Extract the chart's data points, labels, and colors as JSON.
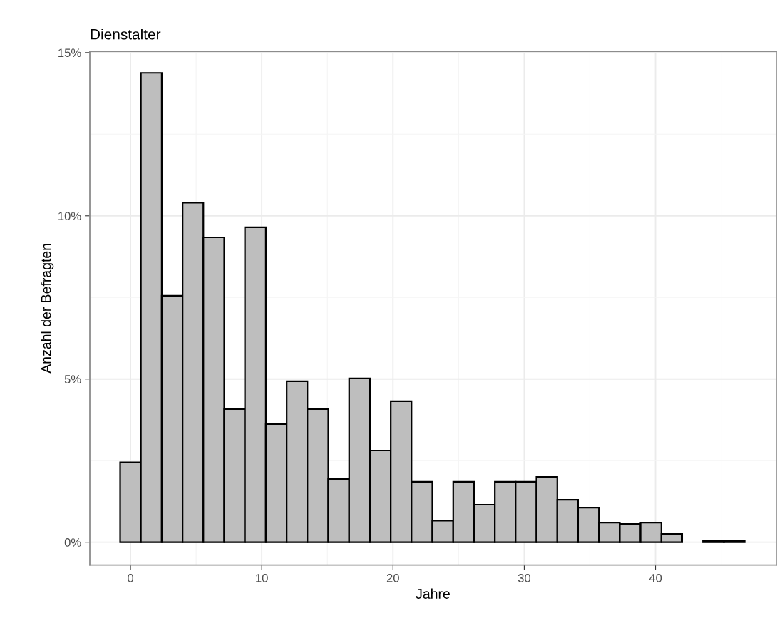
{
  "chart_data": {
    "type": "histogram",
    "title": "Dienstalter",
    "xlabel": "Jahre",
    "ylabel": "Anzahl der Befragten",
    "bins": [
      -0.79,
      0.79,
      2.38,
      3.97,
      5.55,
      7.14,
      8.72,
      10.31,
      11.9,
      13.48,
      15.07,
      16.66,
      18.24,
      19.83,
      21.41,
      23.0,
      24.59,
      26.17,
      27.76,
      29.34,
      30.93,
      32.52,
      34.1,
      35.69,
      37.28,
      38.86,
      40.45,
      42.03,
      43.62,
      45.21,
      46.79
    ],
    "values": [
      2.45,
      14.38,
      7.55,
      10.4,
      9.34,
      4.08,
      9.65,
      3.62,
      4.93,
      4.08,
      1.94,
      5.02,
      2.81,
      4.32,
      1.85,
      0.66,
      1.85,
      1.15,
      1.85,
      1.85,
      2.0,
      1.3,
      1.06,
      0.6,
      0.56,
      0.6,
      0.25,
      0,
      0.04,
      0.04
    ],
    "color": "#bebebe",
    "xlim": [
      -3.1,
      49.2
    ],
    "xticks": [
      0,
      10,
      20,
      30,
      40
    ],
    "ylim": [
      -0.7,
      15.04
    ],
    "yticks": [
      {
        "value": 0,
        "label": "0%"
      },
      {
        "value": 5,
        "label": "5%"
      },
      {
        "value": 10,
        "label": "10%"
      },
      {
        "value": 15,
        "label": "15%"
      }
    ],
    "grid": true
  }
}
